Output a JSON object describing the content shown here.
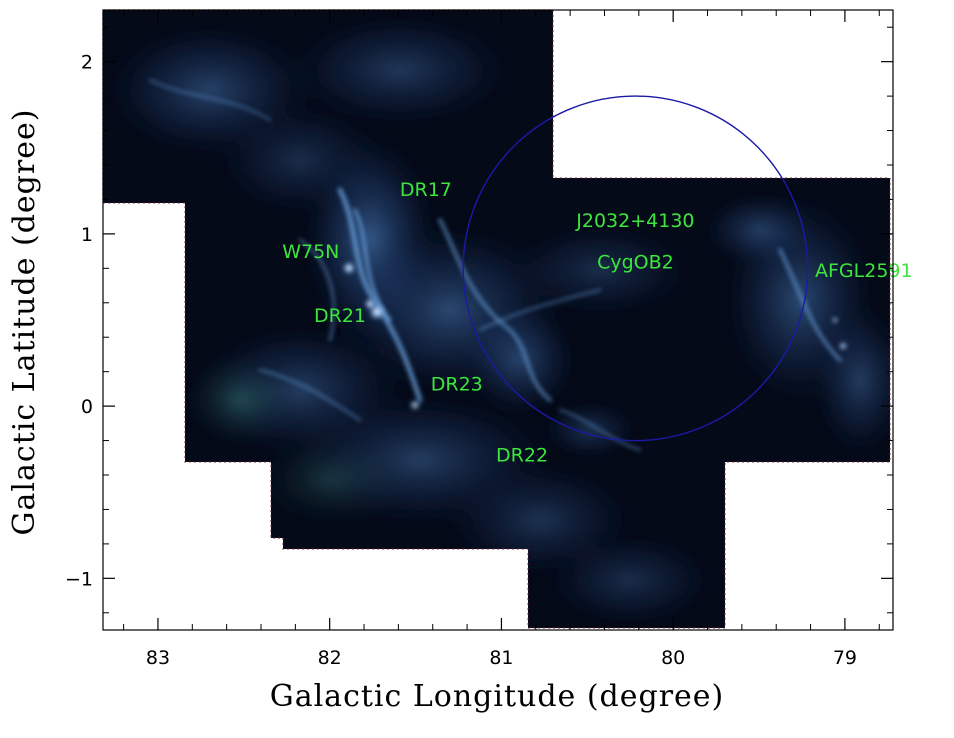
{
  "figure": {
    "xlabel": "Galactic Longitude (degree)",
    "ylabel": "Galactic Latitude (degree)",
    "x_ticks": [
      "83",
      "82",
      "81",
      "80",
      "79"
    ],
    "y_ticks": [
      "2",
      "1",
      "0",
      "−1"
    ],
    "x_range": [
      83.32,
      78.72
    ],
    "y_range": [
      -1.3,
      2.3
    ],
    "x_axis_reversed": true,
    "colormap": "blue-green composite emission map on black background",
    "frame_color": "#000000",
    "label_color": "#3ce63c",
    "circle_color": "#1a1aa6"
  },
  "region_circle": {
    "center_l": 80.22,
    "center_b": 0.8,
    "radius_deg": 1.0
  },
  "sources": [
    {
      "name": "DR17",
      "l": 81.44,
      "b": 1.26
    },
    {
      "name": "J2032+4130",
      "l": 80.22,
      "b": 1.08
    },
    {
      "name": "W75N",
      "l": 82.11,
      "b": 0.9
    },
    {
      "name": "CygOB2",
      "l": 80.22,
      "b": 0.84
    },
    {
      "name": "AFGL2591",
      "l": 78.89,
      "b": 0.79
    },
    {
      "name": "DR21",
      "l": 81.94,
      "b": 0.53
    },
    {
      "name": "DR23",
      "l": 81.26,
      "b": 0.13
    },
    {
      "name": "DR22",
      "l": 80.88,
      "b": -0.28
    }
  ]
}
